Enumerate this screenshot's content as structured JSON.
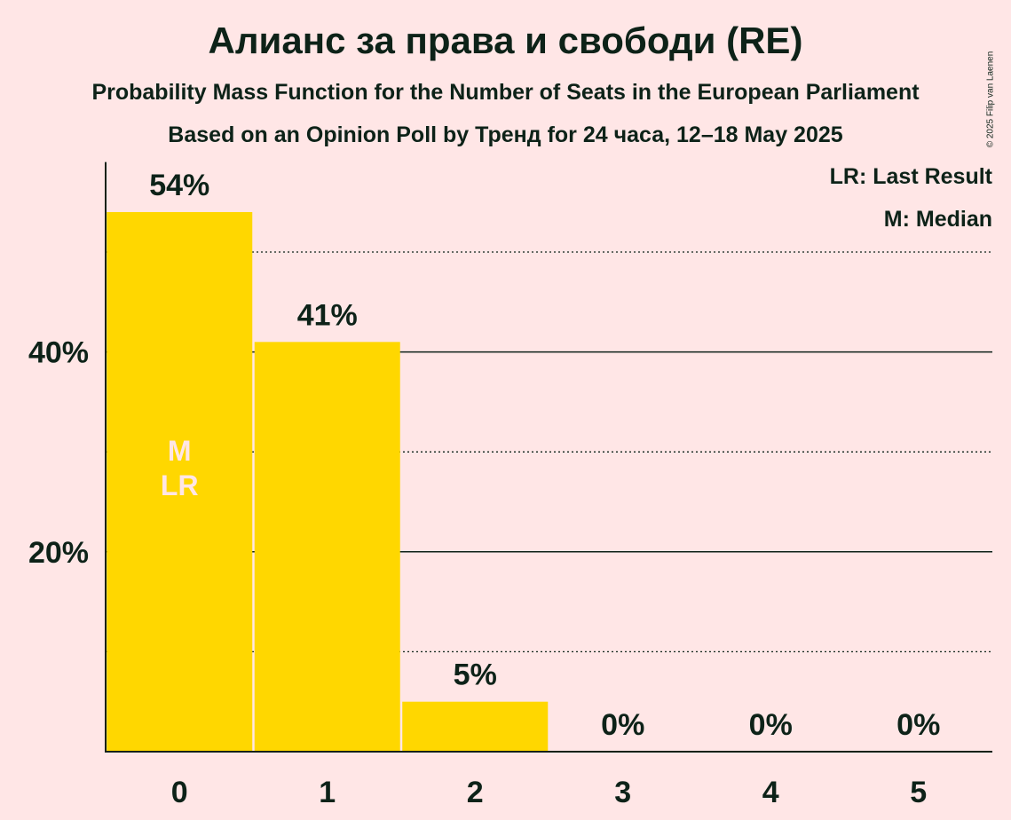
{
  "title": "Алианс за права и свободи (RE)",
  "subtitle": "Probability Mass Function for the Number of Seats in the European Parliament",
  "subtitle2": "Based on an Opinion Poll by Тренд for 24 часа, 12–18 May 2025",
  "copyright": "© 2025 Filip van Laenen",
  "legend": {
    "last_result": "LR: Last Result",
    "median": "M: Median"
  },
  "colors": {
    "background": "#FFE6E6",
    "bar": "#FFD700",
    "text": "#0D2218",
    "marker_text": "#FFE6E6"
  },
  "chart_data": {
    "type": "bar",
    "categories": [
      "0",
      "1",
      "2",
      "3",
      "4",
      "5"
    ],
    "values": [
      54,
      41,
      5,
      0,
      0,
      0
    ],
    "value_labels": [
      "54%",
      "41%",
      "5%",
      "0%",
      "0%",
      "0%"
    ],
    "ylim": [
      0,
      59
    ],
    "yticks": [
      {
        "value": 20,
        "label": "20%"
      },
      {
        "value": 40,
        "label": "40%"
      }
    ],
    "dotted_gridlines": [
      10,
      30,
      50
    ],
    "solid_gridlines": [
      20,
      40
    ],
    "markers": [
      {
        "category_index": 0,
        "lines": [
          "M",
          "LR"
        ]
      }
    ]
  }
}
